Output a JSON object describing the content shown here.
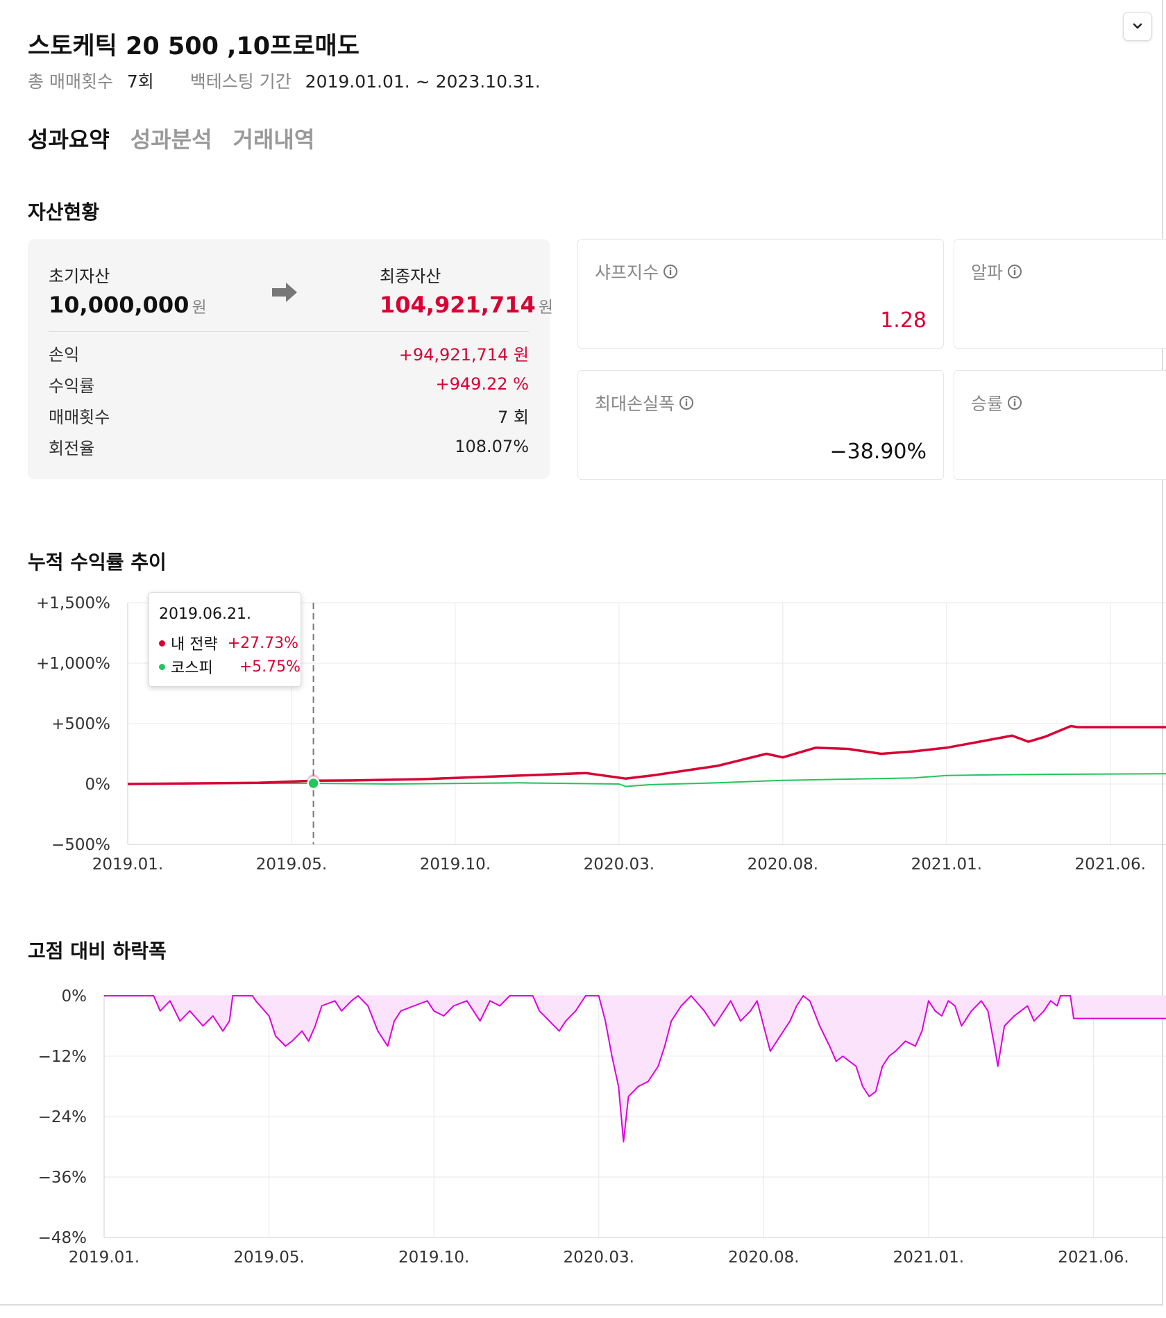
{
  "header": {
    "title": "스토케틱 20 500 ,10프로매도",
    "total_trades_label": "총 매매횟수",
    "total_trades_value": "7회",
    "period_label": "백테스팅 기간",
    "period_value": "2019.01.01. ~ 2023.10.31."
  },
  "tabs": [
    {
      "label": "성과요약",
      "active": true
    },
    {
      "label": "성과분석",
      "active": false
    },
    {
      "label": "거래내역",
      "active": false
    }
  ],
  "asset": {
    "section_title": "자산현황",
    "initial_label": "초기자산",
    "initial_value": "10,000,000",
    "final_label": "최종자산",
    "final_value": "104,921,714",
    "unit": "원",
    "rows": [
      {
        "label": "손익",
        "value": "+94,921,714 원"
      },
      {
        "label": "수익률",
        "value": "+949.22 %"
      },
      {
        "label": "매매횟수",
        "value": "7 회"
      },
      {
        "label": "회전율",
        "value": "108.07%"
      }
    ]
  },
  "metrics": {
    "sharpe_label": "샤프지수",
    "sharpe_value": "1.28",
    "alpha_label": "알파",
    "alpha_value": "",
    "mdd_label": "최대손실폭",
    "mdd_value": "−38.90%",
    "winrate_label": "승률",
    "winrate_value": ""
  },
  "colors": {
    "strategy": "#d80033",
    "kospi": "#22c55e",
    "drawdown_line": "#dd00dd",
    "drawdown_fill": "#fbe3fb",
    "red_text": "#d80033"
  },
  "icons": {
    "collapse": "chevron-down-icon",
    "arrow": "arrow-right-icon",
    "info": "info-icon"
  },
  "cumulative": {
    "section_title": "누적 수익률 추이",
    "tooltip": {
      "date": "2019.06.21.",
      "items": [
        {
          "name": "내 전략",
          "value": "+27.73%"
        },
        {
          "name": "코스피",
          "value": "+5.75%"
        }
      ]
    }
  },
  "drawdown": {
    "section_title": "고점 대비 하락폭"
  },
  "chart_data": [
    {
      "type": "line",
      "title": "누적 수익률 추이",
      "ylim": [
        -500,
        1500
      ],
      "y_ticks": [
        "+1,500%",
        "+1,000%",
        "+500%",
        "0%",
        "−500%"
      ],
      "y_tick_values": [
        1500,
        1000,
        500,
        0,
        -500
      ],
      "x_ticks": [
        "2019.01.",
        "2019.05.",
        "2019.10.",
        "2020.03.",
        "2020.08.",
        "2021.01.",
        "2021.06."
      ],
      "x_tick_months": [
        0,
        5,
        10,
        15,
        20,
        25,
        30
      ],
      "x_range_months": [
        0,
        31.7
      ],
      "grid": true,
      "series": [
        {
          "name": "내 전략",
          "points": [
            [
              0,
              0
            ],
            [
              2,
              5
            ],
            [
              4,
              10
            ],
            [
              5.67,
              27.73
            ],
            [
              7,
              30
            ],
            [
              9,
              40
            ],
            [
              10,
              50
            ],
            [
              12,
              70
            ],
            [
              14,
              90
            ],
            [
              15.2,
              45
            ],
            [
              16,
              70
            ],
            [
              18,
              150
            ],
            [
              19.5,
              250
            ],
            [
              20,
              220
            ],
            [
              21,
              300
            ],
            [
              22,
              290
            ],
            [
              23,
              250
            ],
            [
              24,
              270
            ],
            [
              25,
              300
            ],
            [
              26,
              350
            ],
            [
              27,
              400
            ],
            [
              27.5,
              350
            ],
            [
              28,
              390
            ],
            [
              28.8,
              480
            ],
            [
              29,
              470
            ],
            [
              31.7,
              470
            ]
          ]
        },
        {
          "name": "코스피",
          "points": [
            [
              0,
              0
            ],
            [
              3,
              5
            ],
            [
              5.67,
              5.75
            ],
            [
              8,
              0
            ],
            [
              12,
              10
            ],
            [
              15,
              0
            ],
            [
              15.2,
              -20
            ],
            [
              16,
              -5
            ],
            [
              18,
              10
            ],
            [
              20,
              30
            ],
            [
              22,
              40
            ],
            [
              24,
              50
            ],
            [
              25,
              70
            ],
            [
              26,
              75
            ],
            [
              28,
              80
            ],
            [
              31.7,
              85
            ]
          ]
        }
      ]
    },
    {
      "type": "area",
      "title": "고점 대비 하락폭",
      "ylim": [
        -48,
        0
      ],
      "y_ticks": [
        "0%",
        "−12%",
        "−24%",
        "−36%",
        "−48%"
      ],
      "y_tick_values": [
        0,
        -12,
        -24,
        -36,
        -48
      ],
      "x_ticks": [
        "2019.01.",
        "2019.05.",
        "2019.10.",
        "2020.03.",
        "2020.08.",
        "2021.01.",
        "2021.06."
      ],
      "x_tick_months": [
        0,
        5,
        10,
        15,
        20,
        25,
        30
      ],
      "x_range_months": [
        0,
        32.2
      ],
      "grid": true,
      "series": [
        {
          "name": "",
          "points": [
            [
              0,
              0
            ],
            [
              1.5,
              0
            ],
            [
              1.7,
              -3
            ],
            [
              2,
              -1
            ],
            [
              2.3,
              -5
            ],
            [
              2.6,
              -3
            ],
            [
              3,
              -6
            ],
            [
              3.3,
              -4
            ],
            [
              3.6,
              -7
            ],
            [
              3.8,
              -5
            ],
            [
              3.9,
              0
            ],
            [
              4.5,
              0
            ],
            [
              4.6,
              -1
            ],
            [
              5,
              -4
            ],
            [
              5.2,
              -8
            ],
            [
              5.5,
              -10
            ],
            [
              5.7,
              -9
            ],
            [
              6,
              -7
            ],
            [
              6.2,
              -9
            ],
            [
              6.4,
              -6
            ],
            [
              6.6,
              -2
            ],
            [
              7,
              -1
            ],
            [
              7.2,
              -3
            ],
            [
              7.5,
              -1
            ],
            [
              7.7,
              0
            ],
            [
              8,
              -2
            ],
            [
              8.3,
              -7
            ],
            [
              8.6,
              -10
            ],
            [
              8.8,
              -5
            ],
            [
              9,
              -3
            ],
            [
              9.4,
              -2
            ],
            [
              9.8,
              -1
            ],
            [
              10,
              -3
            ],
            [
              10.3,
              -4
            ],
            [
              10.6,
              -2
            ],
            [
              11,
              -1
            ],
            [
              11.4,
              -5
            ],
            [
              11.7,
              -1
            ],
            [
              12,
              -2
            ],
            [
              12.3,
              0
            ],
            [
              13,
              0
            ],
            [
              13.2,
              -3
            ],
            [
              13.5,
              -5
            ],
            [
              13.8,
              -7
            ],
            [
              14,
              -5
            ],
            [
              14.3,
              -3
            ],
            [
              14.6,
              0
            ],
            [
              15,
              0
            ],
            [
              15.2,
              -5
            ],
            [
              15.4,
              -12
            ],
            [
              15.6,
              -18
            ],
            [
              15.75,
              -29
            ],
            [
              15.9,
              -20
            ],
            [
              16.2,
              -18
            ],
            [
              16.5,
              -17
            ],
            [
              16.8,
              -14
            ],
            [
              17,
              -10
            ],
            [
              17.2,
              -5
            ],
            [
              17.5,
              -2
            ],
            [
              17.8,
              0
            ],
            [
              18.2,
              -3
            ],
            [
              18.5,
              -6
            ],
            [
              18.8,
              -3
            ],
            [
              19,
              -1
            ],
            [
              19.3,
              -5
            ],
            [
              19.6,
              -3
            ],
            [
              19.8,
              -1
            ],
            [
              20,
              -6
            ],
            [
              20.2,
              -11
            ],
            [
              20.4,
              -9
            ],
            [
              20.6,
              -7
            ],
            [
              20.8,
              -5
            ],
            [
              21,
              -2
            ],
            [
              21.2,
              0
            ],
            [
              21.4,
              -1
            ],
            [
              21.7,
              -6
            ],
            [
              22,
              -10
            ],
            [
              22.2,
              -13
            ],
            [
              22.4,
              -12
            ],
            [
              22.6,
              -13
            ],
            [
              22.8,
              -14
            ],
            [
              23,
              -18
            ],
            [
              23.2,
              -20
            ],
            [
              23.4,
              -19
            ],
            [
              23.6,
              -14
            ],
            [
              23.8,
              -12
            ],
            [
              24,
              -11
            ],
            [
              24.3,
              -9
            ],
            [
              24.6,
              -10
            ],
            [
              24.8,
              -7
            ],
            [
              25,
              -1
            ],
            [
              25.2,
              -3
            ],
            [
              25.4,
              -4
            ],
            [
              25.6,
              -1
            ],
            [
              25.8,
              -2
            ],
            [
              26,
              -6
            ],
            [
              26.3,
              -3
            ],
            [
              26.6,
              -1
            ],
            [
              26.8,
              -3
            ],
            [
              27,
              -10
            ],
            [
              27.1,
              -14
            ],
            [
              27.3,
              -6
            ],
            [
              27.6,
              -4
            ],
            [
              27.8,
              -3
            ],
            [
              28,
              -2
            ],
            [
              28.2,
              -5
            ],
            [
              28.5,
              -3
            ],
            [
              28.7,
              -1
            ],
            [
              28.9,
              -2
            ],
            [
              29,
              0
            ],
            [
              29.3,
              0
            ],
            [
              29.4,
              -4.5
            ],
            [
              32.2,
              -4.5
            ]
          ]
        }
      ]
    }
  ]
}
